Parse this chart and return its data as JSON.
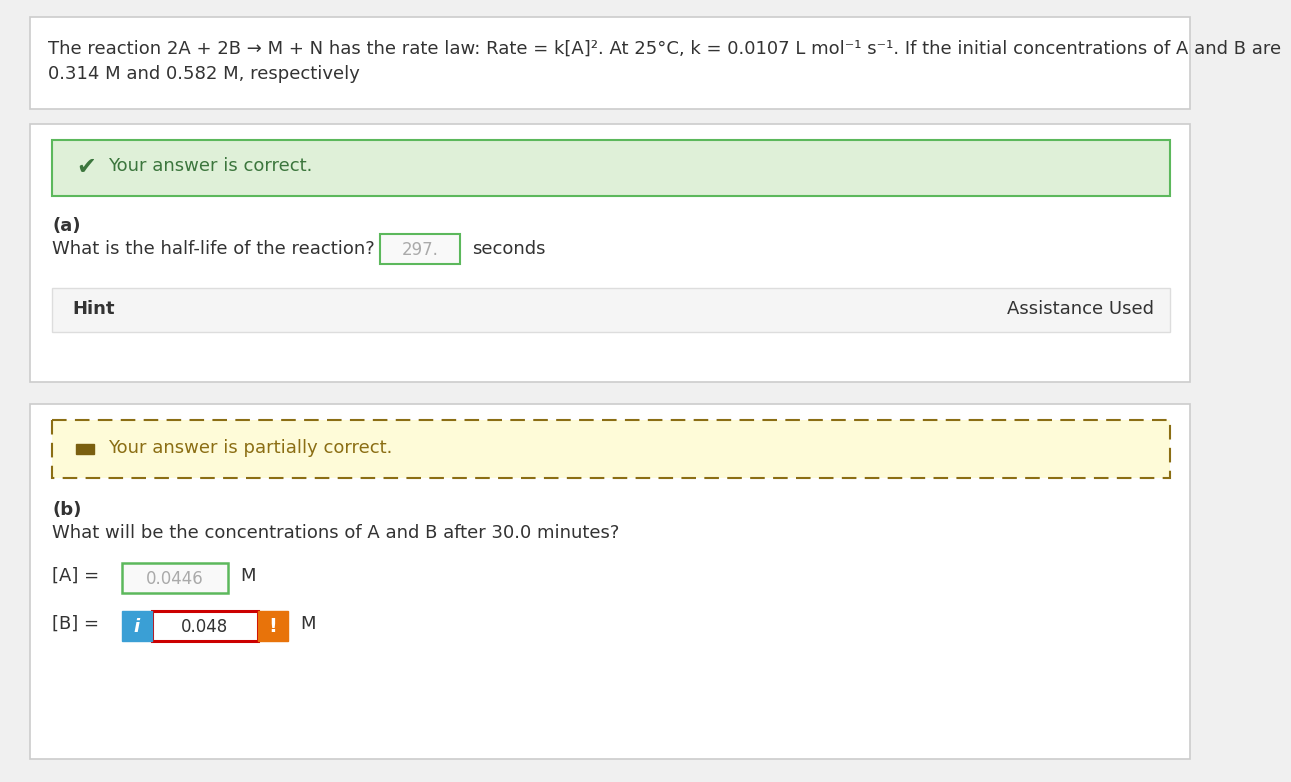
{
  "bg_color": "#f0f0f0",
  "page_bg": "#f0f0f0",
  "box_bg": "#ffffff",
  "box_border": "#cccccc",
  "title_text_line1": "The reaction 2A + 2B → M + N has the rate law: Rate = k[A]². At 25°C, k = 0.0107 L mol⁻¹ s⁻¹. If the initial concentrations of A and B are",
  "title_text_line2": "0.314 M and 0.582 M, respectively",
  "section1_correct_text": "Your answer is correct.",
  "section1_correct_bg": "#dff0d8",
  "section1_correct_border": "#5cb85c",
  "section1_correct_text_color": "#3c763d",
  "section1_label_a": "(a)",
  "section1_question": "What is the half-life of the reaction?",
  "section1_answer": "297.",
  "section1_unit": "seconds",
  "section1_hint": "Hint",
  "section1_assistance": "Assistance Used",
  "section1_hint_bg": "#f5f5f5",
  "section1_hint_border": "#dddddd",
  "section2_partial_text": "Your answer is partially correct.",
  "section2_partial_bg": "#fefbd8",
  "section2_partial_border": "#8b6e14",
  "section2_partial_text_color": "#8b6e14",
  "section2_partial_icon_bg": "#7a5f10",
  "section2_label_b": "(b)",
  "section2_question": "What will be the concentrations of A and B after 30.0 minutes?",
  "section2_labelA": "[A] =",
  "section2_answerA": "0.0446",
  "section2_unitA": "M",
  "section2_labelB": "[B] =",
  "section2_answerB": "0.048",
  "section2_unitB": "M",
  "answerA_box_border": "#5cb85c",
  "answerB_box_border": "#cc0000",
  "info_btn_color": "#3a9fd5",
  "exclaim_btn_color": "#e8730a",
  "text_color": "#333333",
  "gray_text": "#aaaaaa",
  "font_size_title": 13.0,
  "font_size_body": 13.0,
  "font_size_small": 12.0
}
